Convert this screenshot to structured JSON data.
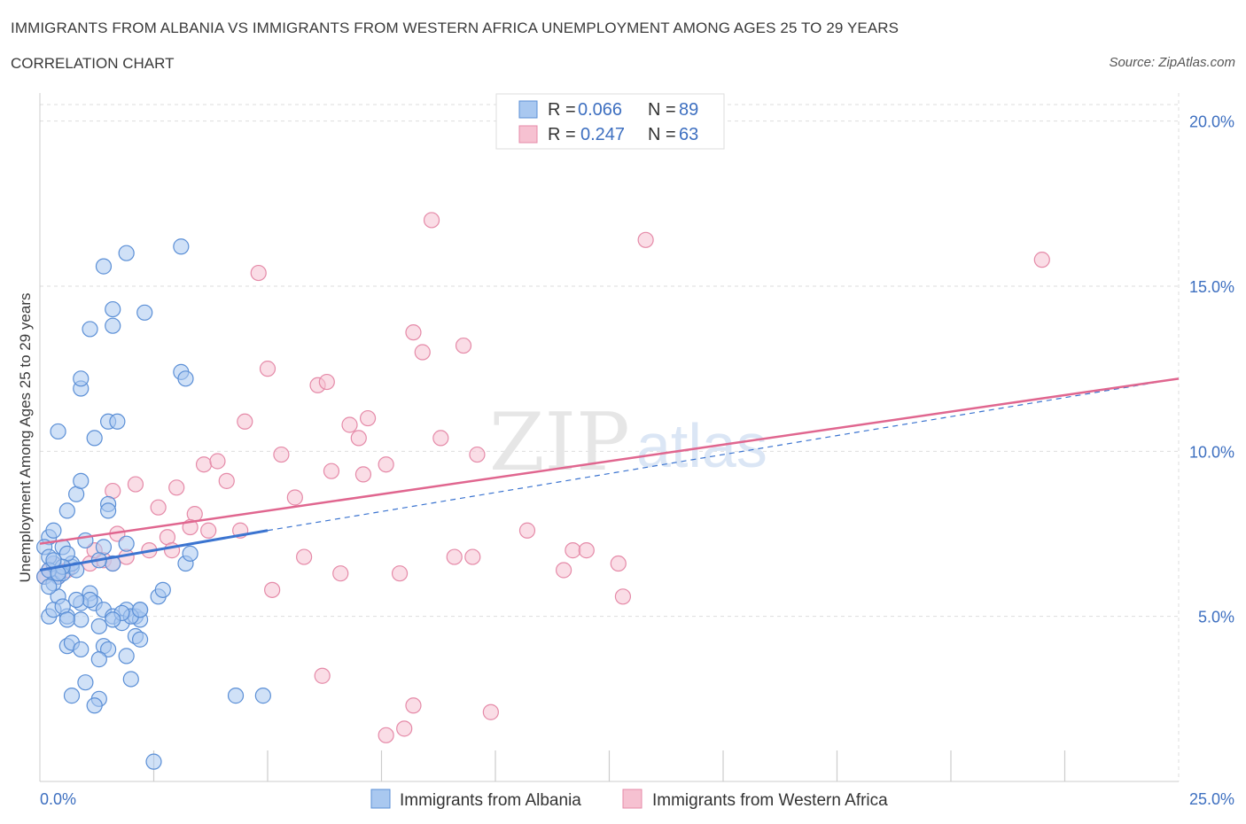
{
  "header": {
    "title": "IMMIGRANTS FROM ALBANIA VS IMMIGRANTS FROM WESTERN AFRICA UNEMPLOYMENT AMONG AGES 25 TO 29 YEARS",
    "subtitle": "CORRELATION CHART",
    "source": "Source: ZipAtlas.com"
  },
  "watermark": {
    "zip": "ZIP",
    "atlas": "atlas"
  },
  "colors": {
    "albania_fill": "#a9c8f0",
    "albania_stroke": "#5b8fd6",
    "albania_line": "#3b74d0",
    "wafrica_fill": "#f6c1d1",
    "wafrica_stroke": "#e58aa8",
    "wafrica_line": "#e0668f",
    "axis_label": "#3d6fc0",
    "grid": "#dddddd"
  },
  "chart_data": {
    "type": "scatter",
    "title": "IMMIGRANTS FROM ALBANIA VS IMMIGRANTS FROM WESTERN AFRICA UNEMPLOYMENT AMONG AGES 25 TO 29 YEARS",
    "xlabel": "",
    "ylabel": "Unemployment Among Ages 25 to 29 years",
    "xlim": [
      0,
      25
    ],
    "ylim": [
      0,
      20.5
    ],
    "x_tick_labels": [
      "0.0%",
      "25.0%"
    ],
    "y_ticks": [
      5,
      10,
      15,
      20
    ],
    "y_tick_labels": [
      "5.0%",
      "10.0%",
      "15.0%",
      "20.0%"
    ],
    "grid": true,
    "legend_position": "top-center",
    "series": [
      {
        "name": "Immigrants from Albania",
        "R": "0.066",
        "N": "89",
        "trend": {
          "x": [
            0,
            5
          ],
          "y": [
            6.4,
            7.6
          ],
          "extended_to": [
            25,
            12.2
          ]
        },
        "points": [
          [
            0.4,
            6.2
          ],
          [
            0.2,
            7.4
          ],
          [
            0.5,
            7.1
          ],
          [
            0.6,
            8.2
          ],
          [
            0.8,
            8.7
          ],
          [
            0.3,
            6.6
          ],
          [
            0.4,
            5.6
          ],
          [
            0.6,
            5.0
          ],
          [
            0.2,
            5.0
          ],
          [
            0.7,
            6.5
          ],
          [
            0.9,
            9.1
          ],
          [
            1.0,
            7.3
          ],
          [
            1.2,
            10.4
          ],
          [
            0.4,
            10.6
          ],
          [
            1.5,
            10.9
          ],
          [
            1.7,
            10.9
          ],
          [
            0.9,
            11.9
          ],
          [
            0.9,
            12.2
          ],
          [
            1.1,
            13.7
          ],
          [
            1.6,
            13.8
          ],
          [
            1.6,
            14.3
          ],
          [
            2.3,
            14.2
          ],
          [
            1.4,
            15.6
          ],
          [
            1.9,
            16.0
          ],
          [
            3.1,
            16.2
          ],
          [
            3.1,
            12.4
          ],
          [
            3.2,
            12.2
          ],
          [
            1.5,
            8.4
          ],
          [
            1.5,
            8.2
          ],
          [
            1.9,
            7.2
          ],
          [
            1.4,
            7.1
          ],
          [
            1.6,
            6.6
          ],
          [
            0.3,
            7.6
          ],
          [
            0.1,
            7.1
          ],
          [
            0.2,
            6.8
          ],
          [
            0.1,
            6.2
          ],
          [
            0.3,
            6.0
          ],
          [
            0.5,
            6.3
          ],
          [
            0.7,
            6.6
          ],
          [
            0.8,
            6.4
          ],
          [
            1.1,
            5.7
          ],
          [
            1.2,
            5.4
          ],
          [
            0.9,
            5.4
          ],
          [
            1.4,
            5.2
          ],
          [
            1.1,
            5.5
          ],
          [
            1.9,
            5.2
          ],
          [
            2.1,
            5.0
          ],
          [
            2.2,
            4.9
          ],
          [
            2.2,
            5.2
          ],
          [
            2.6,
            5.6
          ],
          [
            2.7,
            5.8
          ],
          [
            3.2,
            6.6
          ],
          [
            3.3,
            6.9
          ],
          [
            1.6,
            5.0
          ],
          [
            1.8,
            4.8
          ],
          [
            1.3,
            4.7
          ],
          [
            0.9,
            4.9
          ],
          [
            0.6,
            4.1
          ],
          [
            0.7,
            4.2
          ],
          [
            0.9,
            4.0
          ],
          [
            1.4,
            4.1
          ],
          [
            1.5,
            4.0
          ],
          [
            1.3,
            3.7
          ],
          [
            1.9,
            3.8
          ],
          [
            2.1,
            4.4
          ],
          [
            2.2,
            4.3
          ],
          [
            1.0,
            3.0
          ],
          [
            0.7,
            2.6
          ],
          [
            1.3,
            2.5
          ],
          [
            1.2,
            2.3
          ],
          [
            2.0,
            3.1
          ],
          [
            2.5,
            0.6
          ],
          [
            4.3,
            2.6
          ],
          [
            4.9,
            2.6
          ],
          [
            0.2,
            6.4
          ],
          [
            0.3,
            5.2
          ],
          [
            0.6,
            6.9
          ],
          [
            1.3,
            6.7
          ],
          [
            0.5,
            6.5
          ],
          [
            0.4,
            6.3
          ],
          [
            0.3,
            6.7
          ],
          [
            0.2,
            5.9
          ],
          [
            0.5,
            5.3
          ],
          [
            0.6,
            4.9
          ],
          [
            2.0,
            5.0
          ],
          [
            1.8,
            5.1
          ],
          [
            2.2,
            5.2
          ],
          [
            1.6,
            4.9
          ],
          [
            0.8,
            5.5
          ]
        ]
      },
      {
        "name": "Immigrants from Western Africa",
        "R": "0.247",
        "N": "63",
        "trend": {
          "x": [
            0,
            25
          ],
          "y": [
            7.2,
            12.2
          ]
        },
        "points": [
          [
            8.6,
            17.0
          ],
          [
            13.3,
            16.4
          ],
          [
            22.0,
            15.8
          ],
          [
            4.8,
            15.4
          ],
          [
            8.2,
            13.6
          ],
          [
            8.4,
            13.0
          ],
          [
            9.3,
            13.2
          ],
          [
            5.0,
            12.5
          ],
          [
            6.1,
            12.0
          ],
          [
            6.3,
            12.1
          ],
          [
            4.5,
            10.9
          ],
          [
            6.8,
            10.8
          ],
          [
            7.2,
            11.0
          ],
          [
            7.0,
            10.4
          ],
          [
            8.8,
            10.4
          ],
          [
            5.3,
            9.9
          ],
          [
            9.6,
            9.9
          ],
          [
            3.6,
            9.6
          ],
          [
            3.9,
            9.7
          ],
          [
            6.4,
            9.4
          ],
          [
            7.1,
            9.3
          ],
          [
            7.6,
            9.6
          ],
          [
            2.1,
            9.0
          ],
          [
            4.1,
            9.1
          ],
          [
            3.0,
            8.9
          ],
          [
            1.6,
            8.8
          ],
          [
            5.6,
            8.6
          ],
          [
            2.6,
            8.3
          ],
          [
            3.4,
            8.1
          ],
          [
            3.3,
            7.7
          ],
          [
            3.7,
            7.6
          ],
          [
            4.4,
            7.6
          ],
          [
            10.7,
            7.6
          ],
          [
            1.7,
            7.5
          ],
          [
            2.8,
            7.4
          ],
          [
            2.4,
            7.0
          ],
          [
            2.9,
            7.0
          ],
          [
            1.9,
            6.8
          ],
          [
            1.4,
            6.7
          ],
          [
            1.6,
            6.6
          ],
          [
            1.1,
            6.6
          ],
          [
            0.2,
            6.4
          ],
          [
            0.4,
            6.2
          ],
          [
            5.8,
            6.8
          ],
          [
            9.1,
            6.8
          ],
          [
            9.5,
            6.8
          ],
          [
            11.7,
            7.0
          ],
          [
            12.0,
            7.0
          ],
          [
            12.7,
            6.6
          ],
          [
            11.5,
            6.4
          ],
          [
            7.9,
            6.3
          ],
          [
            6.6,
            6.3
          ],
          [
            5.1,
            5.8
          ],
          [
            12.8,
            5.6
          ],
          [
            6.2,
            3.2
          ],
          [
            8.2,
            2.3
          ],
          [
            9.9,
            2.1
          ],
          [
            7.6,
            1.4
          ],
          [
            8.0,
            1.6
          ],
          [
            0.1,
            6.2
          ],
          [
            0.6,
            6.4
          ],
          [
            1.2,
            7.0
          ],
          [
            0.3,
            6.6
          ]
        ]
      }
    ]
  }
}
